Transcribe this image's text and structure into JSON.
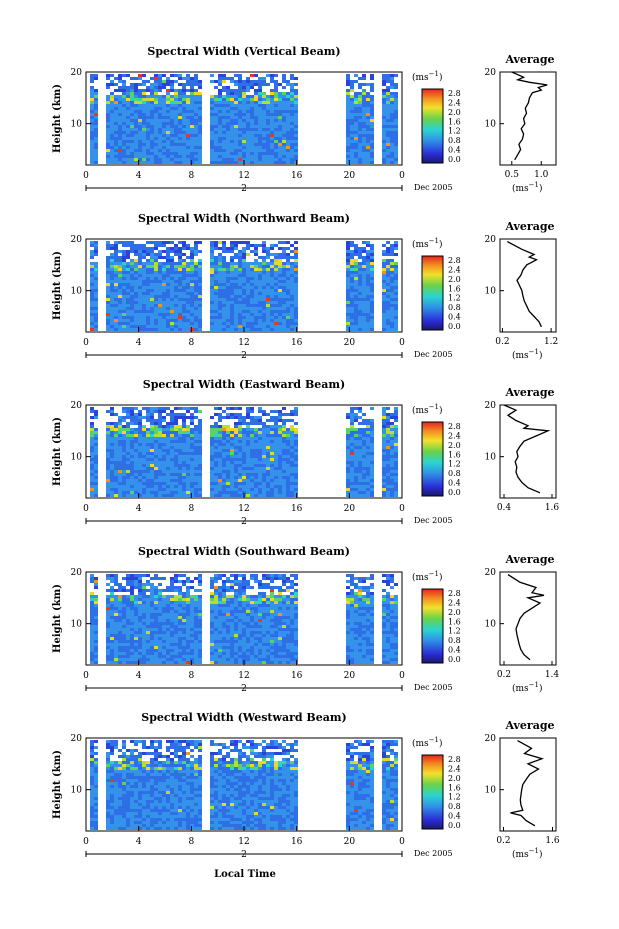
{
  "figure": {
    "x_axis_label": "Local Time",
    "date_label": "Dec 2005",
    "day_marker": "2"
  },
  "chart_data": [
    {
      "type": "heatmap",
      "title": "Spectral Width (Vertical Beam)",
      "ylabel": "Height (km)",
      "x_ticks": [
        "0",
        "4",
        "8",
        "12",
        "16",
        "20",
        "0"
      ],
      "xlim": [
        0,
        24
      ],
      "y_ticks": [
        "20",
        "10"
      ],
      "ylim": [
        2,
        20
      ],
      "colorbar": {
        "unit": "(ms⁻¹)",
        "labels": [
          "2.8",
          "2.4",
          "2.0",
          "1.6",
          "1.2",
          "0.8",
          "0.4",
          "0.0"
        ],
        "range": [
          0,
          2.8
        ]
      },
      "data_gaps_hours": [
        [
          0.8,
          1.3
        ],
        [
          8.8,
          9.3
        ],
        [
          16,
          19.6
        ],
        [
          21.7,
          22.3
        ]
      ],
      "profile": {
        "title": "Average",
        "ylabel": "",
        "xlabel": "(ms⁻¹)",
        "x_ticks": [
          "0.5",
          "1.0"
        ],
        "xlim": [
          0.3,
          1.25
        ],
        "y_ticks": [
          "20",
          "10"
        ],
        "ylim": [
          2,
          20
        ],
        "x": [
          0.55,
          0.6,
          0.65,
          0.62,
          0.68,
          0.7,
          0.66,
          0.72,
          0.7,
          0.75,
          0.73,
          0.78,
          0.8,
          0.85,
          1.0,
          0.95,
          1.1,
          0.8,
          0.6,
          0.7,
          0.5
        ],
        "y": [
          3,
          4,
          5,
          6,
          7,
          8,
          9,
          10,
          11,
          12,
          13,
          14,
          15,
          16,
          16.5,
          17,
          17.5,
          18,
          18.5,
          19,
          20
        ]
      }
    },
    {
      "type": "heatmap",
      "title": "Spectral Width (Northward Beam)",
      "ylabel": "Height (km)",
      "x_ticks": [
        "0",
        "4",
        "8",
        "12",
        "16",
        "20",
        "0"
      ],
      "xlim": [
        0,
        24
      ],
      "y_ticks": [
        "20",
        "10"
      ],
      "ylim": [
        2,
        20
      ],
      "colorbar": {
        "unit": "(ms⁻¹)",
        "labels": [
          "2.8",
          "2.4",
          "2.0",
          "1.6",
          "1.2",
          "0.8",
          "0.4",
          "0.0"
        ],
        "range": [
          0,
          2.8
        ]
      },
      "data_gaps_hours": [
        [
          0.8,
          1.3
        ],
        [
          8.8,
          9.3
        ],
        [
          16,
          19.6
        ],
        [
          21.7,
          22.3
        ]
      ],
      "profile": {
        "title": "Average",
        "ylabel": "",
        "xlabel": "(ms⁻¹)",
        "x_ticks": [
          "0.2",
          "1.2"
        ],
        "xlim": [
          0.15,
          1.3
        ],
        "y_ticks": [
          "20",
          "10"
        ],
        "ylim": [
          2,
          20
        ],
        "x": [
          1.0,
          0.95,
          0.85,
          0.75,
          0.7,
          0.65,
          0.62,
          0.6,
          0.55,
          0.5,
          0.58,
          0.62,
          0.7,
          0.8,
          0.9,
          0.75,
          0.85,
          0.6,
          0.4,
          0.3
        ],
        "y": [
          3,
          4,
          5,
          6,
          7,
          8,
          9,
          10,
          11,
          12,
          13,
          14,
          15,
          15.5,
          16,
          16.5,
          17,
          18,
          19,
          19.5
        ]
      }
    },
    {
      "type": "heatmap",
      "title": "Spectral Width (Eastward Beam)",
      "ylabel": "Height (km)",
      "x_ticks": [
        "0",
        "4",
        "8",
        "12",
        "16",
        "20",
        "0"
      ],
      "xlim": [
        0,
        24
      ],
      "y_ticks": [
        "20",
        "10"
      ],
      "ylim": [
        2,
        20
      ],
      "colorbar": {
        "unit": "(ms⁻¹)",
        "labels": [
          "2.8",
          "2.4",
          "2.0",
          "1.6",
          "1.2",
          "0.8",
          "0.4",
          "0.0"
        ],
        "range": [
          0,
          2.8
        ]
      },
      "data_gaps_hours": [
        [
          0.8,
          1.3
        ],
        [
          8.8,
          9.3
        ],
        [
          16,
          19.6
        ],
        [
          21.7,
          22.3
        ]
      ],
      "profile": {
        "title": "Average",
        "ylabel": "",
        "xlabel": "",
        "x_ticks": [
          "0.4",
          "1.6"
        ],
        "xlim": [
          0.3,
          1.7
        ],
        "y_ticks": [
          "20",
          "10"
        ],
        "ylim": [
          2,
          20
        ],
        "x": [
          1.3,
          1.0,
          0.85,
          0.75,
          0.7,
          0.72,
          0.68,
          0.75,
          0.72,
          0.8,
          0.9,
          1.2,
          1.5,
          0.9,
          1.0,
          0.7,
          0.5,
          0.7,
          0.4
        ],
        "y": [
          3,
          4,
          5,
          6,
          7,
          8,
          9,
          10,
          11,
          12,
          13,
          14,
          15,
          15.5,
          16,
          17,
          18,
          19,
          20
        ]
      }
    },
    {
      "type": "heatmap",
      "title": "Spectral Width (Southward Beam)",
      "ylabel": "Height (km)",
      "x_ticks": [
        "0",
        "4",
        "8",
        "12",
        "16",
        "20",
        "0"
      ],
      "xlim": [
        0,
        24
      ],
      "y_ticks": [
        "20",
        "10"
      ],
      "ylim": [
        2,
        20
      ],
      "colorbar": {
        "unit": "(ms⁻¹)",
        "labels": [
          "2.8",
          "2.4",
          "2.0",
          "1.6",
          "1.2",
          "0.8",
          "0.4",
          "0.0"
        ],
        "range": [
          0,
          2.8
        ]
      },
      "data_gaps_hours": [
        [
          0.8,
          1.3
        ],
        [
          8.8,
          9.3
        ],
        [
          16,
          19.6
        ],
        [
          21.7,
          22.3
        ]
      ],
      "profile": {
        "title": "Average",
        "ylabel": "",
        "xlabel": "(ms⁻¹)",
        "x_ticks": [
          "0.2",
          "1.4"
        ],
        "xlim": [
          0.1,
          1.5
        ],
        "y_ticks": [
          "20",
          "10"
        ],
        "ylim": [
          2,
          20
        ],
        "x": [
          0.85,
          0.7,
          0.62,
          0.58,
          0.55,
          0.52,
          0.5,
          0.55,
          0.6,
          0.7,
          0.9,
          1.1,
          0.8,
          1.2,
          0.9,
          1.0,
          0.6,
          0.3
        ],
        "y": [
          3,
          4,
          5,
          6,
          7,
          8,
          9,
          10,
          11,
          12,
          13,
          14,
          15,
          15.5,
          16,
          17,
          18,
          19.5
        ]
      }
    },
    {
      "type": "heatmap",
      "title": "Spectral Width (Westward Beam)",
      "ylabel": "Height (km)",
      "x_ticks": [
        "0",
        "4",
        "8",
        "12",
        "16",
        "20",
        "0"
      ],
      "xlim": [
        0,
        24
      ],
      "y_ticks": [
        "20",
        "10"
      ],
      "ylim": [
        2,
        20
      ],
      "colorbar": {
        "unit": "(ms⁻¹)",
        "labels": [
          "2.8",
          "2.4",
          "2.0",
          "1.6",
          "1.2",
          "0.8",
          "0.4",
          "0.0"
        ],
        "range": [
          0,
          2.8
        ]
      },
      "data_gaps_hours": [
        [
          0.8,
          1.3
        ],
        [
          8.8,
          9.3
        ],
        [
          16,
          19.6
        ],
        [
          21.7,
          22.3
        ]
      ],
      "profile": {
        "title": "Average",
        "ylabel": "",
        "xlabel": "(ms⁻¹)",
        "x_ticks": [
          "0.2",
          "1.6"
        ],
        "xlim": [
          0.1,
          1.7
        ],
        "y_ticks": [
          "20",
          "10"
        ],
        "ylim": [
          2,
          20
        ],
        "x": [
          1.1,
          0.85,
          0.7,
          0.4,
          0.75,
          0.7,
          0.68,
          0.7,
          0.72,
          0.75,
          0.85,
          0.95,
          1.2,
          0.9,
          1.3,
          0.8,
          1.0,
          0.6
        ],
        "y": [
          3,
          4,
          5,
          5.5,
          6,
          7,
          8,
          9,
          10,
          11,
          12,
          13,
          14,
          15,
          16,
          17,
          18,
          19.5
        ]
      }
    }
  ]
}
